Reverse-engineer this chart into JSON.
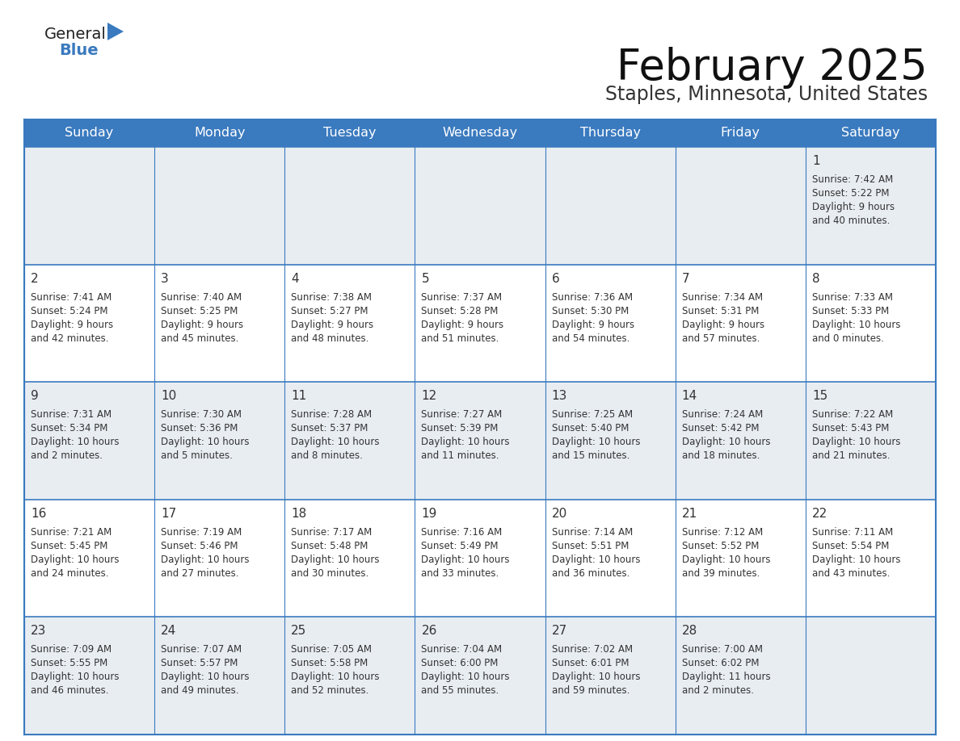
{
  "title": "February 2025",
  "subtitle": "Staples, Minnesota, United States",
  "header_color": "#3a7abf",
  "header_text_color": "#ffffff",
  "border_color": "#3a7abf",
  "text_color": "#333333",
  "day_num_color": "#333333",
  "days_of_week": [
    "Sunday",
    "Monday",
    "Tuesday",
    "Wednesday",
    "Thursday",
    "Friday",
    "Saturday"
  ],
  "row0_bg": "#e8edf2",
  "row1_bg": "#ffffff",
  "calendar": [
    [
      {
        "day": "",
        "sunrise": "",
        "sunset": "",
        "daylight": ""
      },
      {
        "day": "",
        "sunrise": "",
        "sunset": "",
        "daylight": ""
      },
      {
        "day": "",
        "sunrise": "",
        "sunset": "",
        "daylight": ""
      },
      {
        "day": "",
        "sunrise": "",
        "sunset": "",
        "daylight": ""
      },
      {
        "day": "",
        "sunrise": "",
        "sunset": "",
        "daylight": ""
      },
      {
        "day": "",
        "sunrise": "",
        "sunset": "",
        "daylight": ""
      },
      {
        "day": "1",
        "sunrise": "7:42 AM",
        "sunset": "5:22 PM",
        "daylight": "9 hours\nand 40 minutes."
      }
    ],
    [
      {
        "day": "2",
        "sunrise": "7:41 AM",
        "sunset": "5:24 PM",
        "daylight": "9 hours\nand 42 minutes."
      },
      {
        "day": "3",
        "sunrise": "7:40 AM",
        "sunset": "5:25 PM",
        "daylight": "9 hours\nand 45 minutes."
      },
      {
        "day": "4",
        "sunrise": "7:38 AM",
        "sunset": "5:27 PM",
        "daylight": "9 hours\nand 48 minutes."
      },
      {
        "day": "5",
        "sunrise": "7:37 AM",
        "sunset": "5:28 PM",
        "daylight": "9 hours\nand 51 minutes."
      },
      {
        "day": "6",
        "sunrise": "7:36 AM",
        "sunset": "5:30 PM",
        "daylight": "9 hours\nand 54 minutes."
      },
      {
        "day": "7",
        "sunrise": "7:34 AM",
        "sunset": "5:31 PM",
        "daylight": "9 hours\nand 57 minutes."
      },
      {
        "day": "8",
        "sunrise": "7:33 AM",
        "sunset": "5:33 PM",
        "daylight": "10 hours\nand 0 minutes."
      }
    ],
    [
      {
        "day": "9",
        "sunrise": "7:31 AM",
        "sunset": "5:34 PM",
        "daylight": "10 hours\nand 2 minutes."
      },
      {
        "day": "10",
        "sunrise": "7:30 AM",
        "sunset": "5:36 PM",
        "daylight": "10 hours\nand 5 minutes."
      },
      {
        "day": "11",
        "sunrise": "7:28 AM",
        "sunset": "5:37 PM",
        "daylight": "10 hours\nand 8 minutes."
      },
      {
        "day": "12",
        "sunrise": "7:27 AM",
        "sunset": "5:39 PM",
        "daylight": "10 hours\nand 11 minutes."
      },
      {
        "day": "13",
        "sunrise": "7:25 AM",
        "sunset": "5:40 PM",
        "daylight": "10 hours\nand 15 minutes."
      },
      {
        "day": "14",
        "sunrise": "7:24 AM",
        "sunset": "5:42 PM",
        "daylight": "10 hours\nand 18 minutes."
      },
      {
        "day": "15",
        "sunrise": "7:22 AM",
        "sunset": "5:43 PM",
        "daylight": "10 hours\nand 21 minutes."
      }
    ],
    [
      {
        "day": "16",
        "sunrise": "7:21 AM",
        "sunset": "5:45 PM",
        "daylight": "10 hours\nand 24 minutes."
      },
      {
        "day": "17",
        "sunrise": "7:19 AM",
        "sunset": "5:46 PM",
        "daylight": "10 hours\nand 27 minutes."
      },
      {
        "day": "18",
        "sunrise": "7:17 AM",
        "sunset": "5:48 PM",
        "daylight": "10 hours\nand 30 minutes."
      },
      {
        "day": "19",
        "sunrise": "7:16 AM",
        "sunset": "5:49 PM",
        "daylight": "10 hours\nand 33 minutes."
      },
      {
        "day": "20",
        "sunrise": "7:14 AM",
        "sunset": "5:51 PM",
        "daylight": "10 hours\nand 36 minutes."
      },
      {
        "day": "21",
        "sunrise": "7:12 AM",
        "sunset": "5:52 PM",
        "daylight": "10 hours\nand 39 minutes."
      },
      {
        "day": "22",
        "sunrise": "7:11 AM",
        "sunset": "5:54 PM",
        "daylight": "10 hours\nand 43 minutes."
      }
    ],
    [
      {
        "day": "23",
        "sunrise": "7:09 AM",
        "sunset": "5:55 PM",
        "daylight": "10 hours\nand 46 minutes."
      },
      {
        "day": "24",
        "sunrise": "7:07 AM",
        "sunset": "5:57 PM",
        "daylight": "10 hours\nand 49 minutes."
      },
      {
        "day": "25",
        "sunrise": "7:05 AM",
        "sunset": "5:58 PM",
        "daylight": "10 hours\nand 52 minutes."
      },
      {
        "day": "26",
        "sunrise": "7:04 AM",
        "sunset": "6:00 PM",
        "daylight": "10 hours\nand 55 minutes."
      },
      {
        "day": "27",
        "sunrise": "7:02 AM",
        "sunset": "6:01 PM",
        "daylight": "10 hours\nand 59 minutes."
      },
      {
        "day": "28",
        "sunrise": "7:00 AM",
        "sunset": "6:02 PM",
        "daylight": "11 hours\nand 2 minutes."
      },
      {
        "day": "",
        "sunrise": "",
        "sunset": "",
        "daylight": ""
      }
    ]
  ],
  "logo_text_general": "General",
  "logo_text_blue": "Blue",
  "logo_color_general": "#222222",
  "logo_color_blue": "#3a7abf",
  "logo_triangle_color": "#3a7abf",
  "title_fontsize": 38,
  "subtitle_fontsize": 17,
  "dow_fontsize": 11.5,
  "day_num_fontsize": 11,
  "cell_text_fontsize": 8.5
}
